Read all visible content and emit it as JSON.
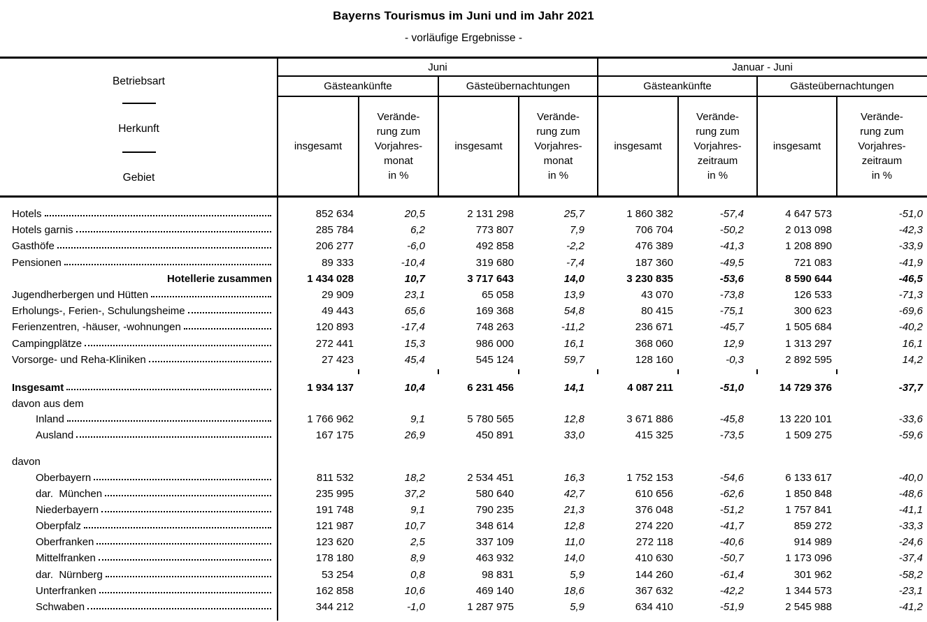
{
  "title": "Bayerns Tourismus im Juni und im Jahr 2021",
  "subtitle": "- vorläufige Ergebnisse -",
  "header": {
    "stub_lines": [
      "Betriebsart",
      "Herkunft",
      "Gebiet"
    ],
    "groups": [
      {
        "label": "Juni"
      },
      {
        "label": "Januar - Juni"
      }
    ],
    "subgroups": [
      "Gästeankünfte",
      "Gästeübernachtungen",
      "Gästeankünfte",
      "Gästeübernachtungen"
    ],
    "measure_total": "insgesamt",
    "measure_change_month": "Verände-\nrung zum\nVorjahres-\nmonat\nin %",
    "measure_change_period": "Verände-\nrung zum\nVorjahres-\nzeitraum\nin %"
  },
  "rows": [
    {
      "type": "data",
      "label": "Hotels",
      "indent": false,
      "bold": false,
      "values": [
        "852 634",
        "20,5",
        "2 131 298",
        "25,7",
        "1 860 382",
        "-57,4",
        "4 647 573",
        "-51,0"
      ]
    },
    {
      "type": "data",
      "label": "Hotels garnis",
      "indent": false,
      "bold": false,
      "values": [
        "285 784",
        "6,2",
        "773 807",
        "7,9",
        "706 704",
        "-50,2",
        "2 013 098",
        "-42,3"
      ]
    },
    {
      "type": "data",
      "label": "Gasthöfe",
      "indent": false,
      "bold": false,
      "values": [
        "206 277",
        "-6,0",
        "492 858",
        "-2,2",
        "476 389",
        "-41,3",
        "1 208 890",
        "-33,9"
      ]
    },
    {
      "type": "data",
      "label": "Pensionen",
      "indent": false,
      "bold": false,
      "values": [
        "89 333",
        "-10,4",
        "319 680",
        "-7,4",
        "187 360",
        "-49,5",
        "721 083",
        "-41,9"
      ]
    },
    {
      "type": "total",
      "label": "Hotellerie zusammen",
      "indent": false,
      "bold": true,
      "values": [
        "1 434 028",
        "10,7",
        "3 717 643",
        "14,0",
        "3 230 835",
        "-53,6",
        "8 590 644",
        "-46,5"
      ]
    },
    {
      "type": "data",
      "label": "Jugendherbergen und Hütten",
      "indent": false,
      "bold": false,
      "values": [
        "29 909",
        "23,1",
        "65 058",
        "13,9",
        "43 070",
        "-73,8",
        "126 533",
        "-71,3"
      ]
    },
    {
      "type": "data",
      "label": "Erholungs-, Ferien-, Schulungsheime",
      "indent": false,
      "bold": false,
      "values": [
        "49 443",
        "65,6",
        "169 368",
        "54,8",
        "80 415",
        "-75,1",
        "300 623",
        "-69,6"
      ]
    },
    {
      "type": "data",
      "label": "Ferienzentren, -häuser, -wohnungen",
      "indent": false,
      "bold": false,
      "values": [
        "120 893",
        "-17,4",
        "748 263",
        "-11,2",
        "236 671",
        "-45,7",
        "1 505 684",
        "-40,2"
      ]
    },
    {
      "type": "data",
      "label": "Campingplätze",
      "indent": false,
      "bold": false,
      "values": [
        "272 441",
        "15,3",
        "986 000",
        "16,1",
        "368 060",
        "12,9",
        "1 313 297",
        "16,1"
      ]
    },
    {
      "type": "data",
      "label": "Vorsorge- und Reha-Kliniken",
      "indent": false,
      "bold": false,
      "values": [
        "27 423",
        "45,4",
        "545 124",
        "59,7",
        "128 160",
        "-0,3",
        "2 892 595",
        "14,2"
      ]
    },
    {
      "type": "gap",
      "ticks": true
    },
    {
      "type": "data",
      "label": "Insgesamt",
      "indent": false,
      "bold": true,
      "values": [
        "1 934 137",
        "10,4",
        "6 231 456",
        "14,1",
        "4 087 211",
        "-51,0",
        "14 729 376",
        "-37,7"
      ]
    },
    {
      "type": "section",
      "label": "davon aus dem"
    },
    {
      "type": "data",
      "label": "Inland",
      "indent": true,
      "bold": false,
      "values": [
        "1 766 962",
        "9,1",
        "5 780 565",
        "12,8",
        "3 671 886",
        "-45,8",
        "13 220 101",
        "-33,6"
      ]
    },
    {
      "type": "data",
      "label": "Ausland",
      "indent": true,
      "bold": false,
      "values": [
        "167 175",
        "26,9",
        "450 891",
        "33,0",
        "415 325",
        "-73,5",
        "1 509 275",
        "-59,6"
      ]
    },
    {
      "type": "gap",
      "ticks": false
    },
    {
      "type": "section",
      "label": "davon"
    },
    {
      "type": "data",
      "label": "Oberbayern",
      "indent": true,
      "bold": false,
      "values": [
        "811 532",
        "18,2",
        "2 534 451",
        "16,3",
        "1 752 153",
        "-54,6",
        "6 133 617",
        "-40,0"
      ]
    },
    {
      "type": "data",
      "label": "dar.  München",
      "indent": true,
      "bold": false,
      "values": [
        "235 995",
        "37,2",
        "580 640",
        "42,7",
        "610 656",
        "-62,6",
        "1 850 848",
        "-48,6"
      ]
    },
    {
      "type": "data",
      "label": "Niederbayern",
      "indent": true,
      "bold": false,
      "values": [
        "191 748",
        "9,1",
        "790 235",
        "21,3",
        "376 048",
        "-51,2",
        "1 757 841",
        "-41,1"
      ]
    },
    {
      "type": "data",
      "label": "Oberpfalz",
      "indent": true,
      "bold": false,
      "values": [
        "121 987",
        "10,7",
        "348 614",
        "12,8",
        "274 220",
        "-41,7",
        "859 272",
        "-33,3"
      ]
    },
    {
      "type": "data",
      "label": "Oberfranken",
      "indent": true,
      "bold": false,
      "values": [
        "123 620",
        "2,5",
        "337 109",
        "11,0",
        "272 118",
        "-40,6",
        "914 989",
        "-24,6"
      ]
    },
    {
      "type": "data",
      "label": "Mittelfranken",
      "indent": true,
      "bold": false,
      "values": [
        "178 180",
        "8,9",
        "463 932",
        "14,0",
        "410 630",
        "-50,7",
        "1 173 096",
        "-37,4"
      ]
    },
    {
      "type": "data",
      "label": "dar.  Nürnberg",
      "indent": true,
      "bold": false,
      "values": [
        "53 254",
        "0,8",
        "98 831",
        "5,9",
        "144 260",
        "-61,4",
        "301 962",
        "-58,2"
      ]
    },
    {
      "type": "data",
      "label": "Unterfranken",
      "indent": true,
      "bold": false,
      "values": [
        "162 858",
        "10,6",
        "469 140",
        "18,6",
        "367 632",
        "-42,2",
        "1 344 573",
        "-23,1"
      ]
    },
    {
      "type": "data",
      "label": "Schwaben",
      "indent": true,
      "bold": false,
      "values": [
        "344 212",
        "-1,0",
        "1 287 975",
        "5,9",
        "634 410",
        "-51,9",
        "2 545 988",
        "-41,2"
      ]
    }
  ]
}
